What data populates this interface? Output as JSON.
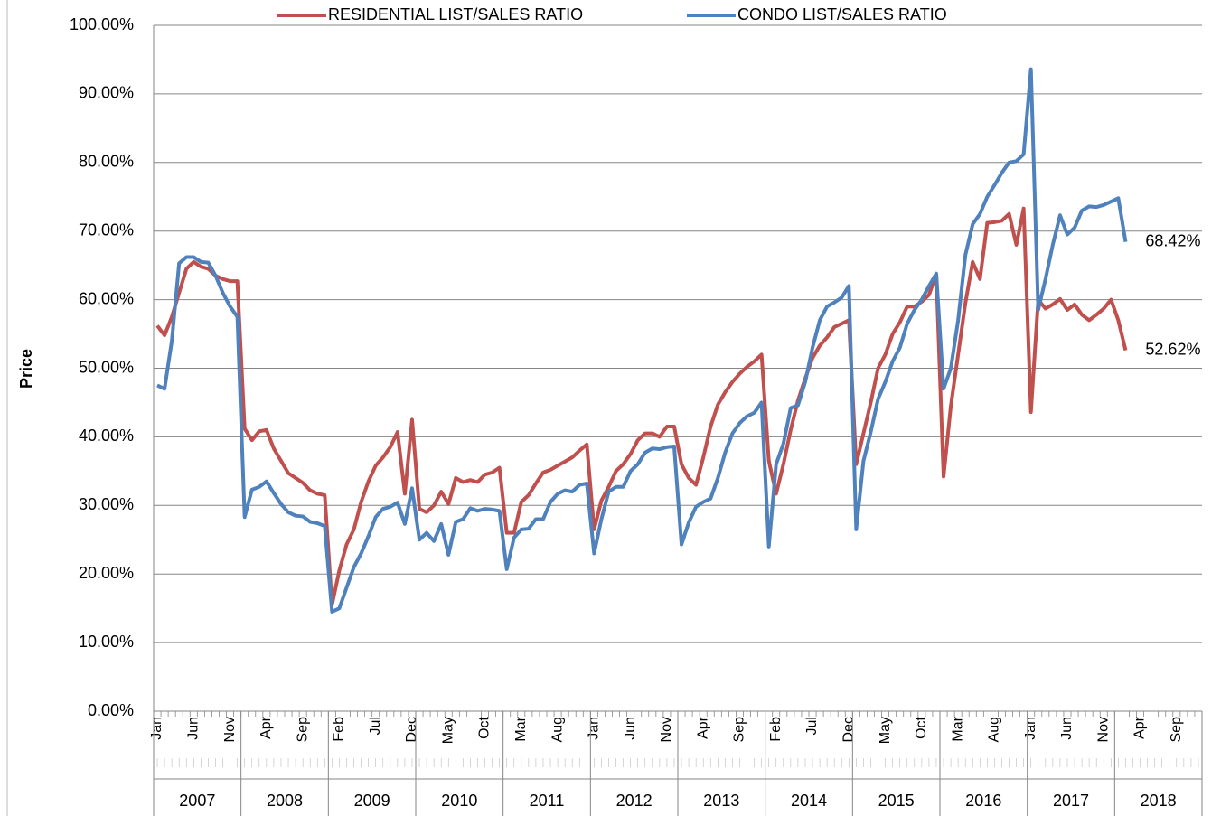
{
  "chart_data": {
    "type": "line",
    "y_label": "Price",
    "categories": [
      "Jan",
      null,
      null,
      null,
      null,
      "Jun",
      null,
      null,
      null,
      null,
      "Nov",
      null,
      null,
      null,
      null,
      "Apr",
      null,
      null,
      null,
      null,
      "Sep",
      null,
      null,
      null,
      null,
      "Feb",
      null,
      null,
      null,
      null,
      "Jul",
      null,
      null,
      null,
      null,
      "Dec",
      null,
      null,
      null,
      null,
      "May",
      null,
      null,
      null,
      null,
      "Oct",
      null,
      null,
      null,
      null,
      "Mar",
      null,
      null,
      null,
      null,
      "Aug",
      null,
      null,
      null,
      null,
      "Jan",
      null,
      null,
      null,
      null,
      "Jun",
      null,
      null,
      null,
      null,
      "Nov",
      null,
      null,
      null,
      null,
      "Apr",
      null,
      null,
      null,
      null,
      "Sep",
      null,
      null,
      null,
      null,
      "Feb",
      null,
      null,
      null,
      null,
      "Jul",
      null,
      null,
      null,
      null,
      "Dec",
      null,
      null,
      null,
      null,
      "May",
      null,
      null,
      null,
      null,
      "Oct",
      null,
      null,
      null,
      null,
      "Mar",
      null,
      null,
      null,
      null,
      "Aug",
      null,
      null,
      null,
      null,
      "Jan",
      null,
      null,
      null,
      null,
      "Jun",
      null,
      null,
      null,
      null,
      "Nov",
      null,
      null,
      null,
      null,
      "Apr",
      null,
      null,
      null,
      null,
      "Sep",
      null,
      null,
      null
    ],
    "years": [
      "2007",
      "2008",
      "2009",
      "2010",
      "2011",
      "2012",
      "2013",
      "2014",
      "2015",
      "2016",
      "2017",
      "2018"
    ],
    "series": [
      {
        "name": "RESIDENTIAL LIST/SALES RATIO",
        "color": "#c0504d",
        "values": [
          56.2,
          54.8,
          57.5,
          61,
          64.5,
          65.5,
          64.8,
          64.5,
          63.5,
          63,
          62.7,
          62.7,
          41.2,
          39.5,
          40.8,
          41,
          38.3,
          36.5,
          34.7,
          34,
          33.3,
          32.2,
          31.7,
          31.5,
          15.5,
          20.5,
          24.3,
          26.5,
          30.5,
          33.5,
          35.8,
          37,
          38.5,
          40.7,
          31.7,
          42.5,
          29.5,
          29,
          30,
          32,
          30.2,
          34,
          33.4,
          33.7,
          33.4,
          34.5,
          34.8,
          35.5,
          26,
          26,
          30.5,
          31.5,
          33.2,
          34.8,
          35.2,
          35.8,
          36.4,
          37,
          38,
          38.9,
          26.5,
          30.7,
          32.7,
          35,
          36,
          37.5,
          39.5,
          40.5,
          40.5,
          40,
          41.5,
          41.5,
          36,
          34,
          33,
          37,
          41.5,
          44.7,
          46.5,
          48,
          49.2,
          50.2,
          51,
          52,
          36.5,
          31.7,
          36,
          41,
          45.3,
          48.5,
          51.5,
          53.3,
          54.5,
          56,
          56.5,
          57,
          36,
          40.5,
          45,
          50,
          52,
          55,
          56.7,
          59,
          59,
          59.7,
          60.7,
          63.7,
          34.2,
          44.5,
          52,
          59.5,
          65.5,
          63,
          71.2,
          71.3,
          71.5,
          72.5,
          68,
          73.3,
          43.6,
          60,
          58.7,
          59.3,
          60.1,
          58.5,
          59.3,
          57.8,
          57,
          57.8,
          58.7,
          60,
          57,
          52.62,
          null,
          null,
          null,
          null,
          null,
          null,
          null,
          null,
          null,
          null
        ],
        "value_labels": [
          null,
          null,
          null,
          null,
          null,
          null,
          null,
          null,
          null,
          null,
          null,
          null,
          null,
          null,
          null,
          null,
          null,
          null,
          null,
          null,
          null,
          null,
          null,
          null,
          null,
          null,
          null,
          null,
          null,
          null,
          null,
          null,
          null,
          null,
          null,
          null,
          null,
          null,
          null,
          null,
          null,
          null,
          null,
          null,
          null,
          null,
          null,
          null,
          null,
          null,
          null,
          null,
          null,
          null,
          null,
          null,
          null,
          null,
          null,
          null,
          null,
          null,
          null,
          null,
          null,
          null,
          null,
          null,
          null,
          null,
          null,
          null,
          null,
          null,
          null,
          null,
          null,
          null,
          null,
          null,
          null,
          null,
          null,
          null,
          null,
          null,
          null,
          null,
          null,
          null,
          null,
          null,
          null,
          null,
          null,
          null,
          null,
          null,
          null,
          null,
          null,
          null,
          null,
          null,
          null,
          null,
          null,
          null,
          null,
          null,
          null,
          null,
          null,
          null,
          null,
          null,
          null,
          null,
          null,
          null,
          null,
          null,
          null,
          null,
          null,
          null,
          null,
          null,
          null,
          null,
          null,
          null,
          null,
          "52.62%",
          null,
          null,
          null,
          null,
          null,
          null,
          null,
          null,
          null,
          null
        ]
      },
      {
        "name": "CONDO LIST/SALES RATIO",
        "color": "#4f81bd",
        "values": [
          47.5,
          47,
          54,
          65.3,
          66.2,
          66.2,
          65.5,
          65.4,
          63.5,
          61,
          59,
          57.5,
          28.3,
          32.3,
          32.7,
          33.5,
          31.8,
          30.2,
          29,
          28.5,
          28.4,
          27.6,
          27.4,
          27,
          14.5,
          15,
          18,
          21,
          23,
          25.5,
          28.3,
          29.5,
          29.8,
          30.4,
          27.3,
          32.5,
          25,
          26,
          24.8,
          27.3,
          22.8,
          27.6,
          28,
          29.6,
          29.2,
          29.5,
          29.4,
          29.2,
          20.7,
          25.3,
          26.5,
          26.6,
          28,
          28,
          30.5,
          31.7,
          32.2,
          32,
          33,
          33.2,
          23,
          28,
          32,
          32.7,
          32.7,
          35,
          36,
          37.7,
          38.3,
          38.2,
          38.5,
          38.6,
          24.3,
          27.5,
          29.8,
          30.5,
          31,
          34,
          37.7,
          40.5,
          42,
          43,
          43.5,
          45,
          24,
          36,
          39,
          44.2,
          44.6,
          48,
          53,
          57,
          59,
          59.6,
          60.3,
          62,
          26.5,
          36.5,
          40.7,
          45.5,
          48,
          51,
          53,
          56.5,
          58.5,
          60,
          62,
          63.8,
          47,
          50,
          57,
          66.5,
          71,
          72.5,
          75,
          76.7,
          78.5,
          80,
          80.2,
          81.2,
          93.6,
          58.5,
          63,
          68,
          72.3,
          69.5,
          70.5,
          73,
          73.6,
          73.5,
          73.8,
          74.3,
          74.8,
          68.42,
          null,
          null,
          null,
          null,
          null,
          null,
          null,
          null,
          null,
          null
        ],
        "value_labels": [
          null,
          null,
          null,
          null,
          null,
          null,
          null,
          null,
          null,
          null,
          null,
          null,
          null,
          null,
          null,
          null,
          null,
          null,
          null,
          null,
          null,
          null,
          null,
          null,
          null,
          null,
          null,
          null,
          null,
          null,
          null,
          null,
          null,
          null,
          null,
          null,
          null,
          null,
          null,
          null,
          null,
          null,
          null,
          null,
          null,
          null,
          null,
          null,
          null,
          null,
          null,
          null,
          null,
          null,
          null,
          null,
          null,
          null,
          null,
          null,
          null,
          null,
          null,
          null,
          null,
          null,
          null,
          null,
          null,
          null,
          null,
          null,
          null,
          null,
          null,
          null,
          null,
          null,
          null,
          null,
          null,
          null,
          null,
          null,
          null,
          null,
          null,
          null,
          null,
          null,
          null,
          null,
          null,
          null,
          null,
          null,
          null,
          null,
          null,
          null,
          null,
          null,
          null,
          null,
          null,
          null,
          null,
          null,
          null,
          null,
          null,
          null,
          null,
          null,
          null,
          null,
          null,
          null,
          null,
          null,
          null,
          null,
          null,
          null,
          null,
          null,
          null,
          null,
          null,
          null,
          null,
          null,
          null,
          "68.42%",
          null,
          null,
          null,
          null,
          null,
          null,
          null,
          null,
          null,
          null
        ]
      }
    ],
    "ylim": [
      0,
      100
    ],
    "yticks": [
      {
        "value": 0,
        "label": "0.00%"
      },
      {
        "value": 10,
        "label": "10.00%"
      },
      {
        "value": 20,
        "label": "20.00%"
      },
      {
        "value": 30,
        "label": "30.00%"
      },
      {
        "value": 40,
        "label": "40.00%"
      },
      {
        "value": 50,
        "label": "50.00%"
      },
      {
        "value": 60,
        "label": "60.00%"
      },
      {
        "value": 70,
        "label": "70.00%"
      },
      {
        "value": 80,
        "label": "80.00%"
      },
      {
        "value": 90,
        "label": "90.00%"
      },
      {
        "value": 100,
        "label": "100.00%"
      }
    ],
    "grid": true,
    "legend": "top"
  }
}
